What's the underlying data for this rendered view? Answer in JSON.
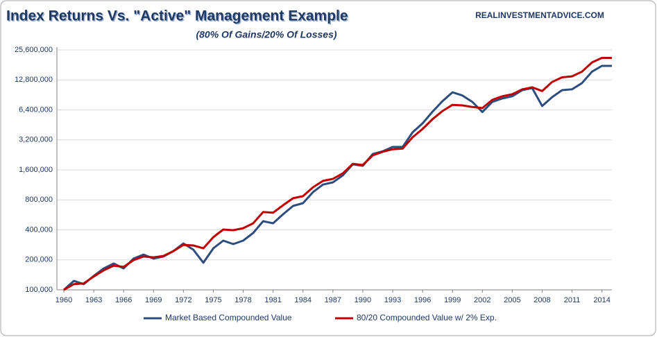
{
  "chart_data": {
    "type": "line",
    "title": "Index Returns Vs. \"Active\" Management Example",
    "subtitle": "(80% Of Gains/20% Of Losses)",
    "source": "REALINVESTMENTADVICE.COM",
    "x": [
      1960,
      1961,
      1962,
      1963,
      1964,
      1965,
      1966,
      1967,
      1968,
      1969,
      1970,
      1971,
      1972,
      1973,
      1974,
      1975,
      1976,
      1977,
      1978,
      1979,
      1980,
      1981,
      1982,
      1983,
      1984,
      1985,
      1986,
      1987,
      1988,
      1989,
      1990,
      1991,
      1992,
      1993,
      1994,
      1995,
      1996,
      1997,
      1998,
      1999,
      2000,
      2001,
      2002,
      2003,
      2004,
      2005,
      2006,
      2007,
      2008,
      2009,
      2010,
      2011,
      2012,
      2013,
      2014,
      2015
    ],
    "series": [
      {
        "name": "Market Based Compounded Value",
        "color": "#2e4d7f",
        "values": [
          100000,
          123000,
          114000,
          138000,
          164000,
          184000,
          164000,
          206000,
          226000,
          206000,
          216000,
          245000,
          292000,
          253000,
          187000,
          261000,
          312000,
          288000,
          312000,
          372000,
          489000,
          466000,
          574000,
          695000,
          741000,
          957000,
          1140000,
          1200000,
          1410000,
          1820000,
          1760000,
          2310000,
          2460000,
          2720000,
          2720000,
          3810000,
          4690000,
          6150000,
          7830000,
          9620000,
          8930000,
          7700000,
          6090000,
          7700000,
          8340000,
          8770000,
          10100000,
          10600000,
          7000000,
          8600000,
          10100000,
          10300000,
          11900000,
          15500000,
          17700000,
          17700000
        ]
      },
      {
        "name": "80/20 Compounded Value w/ 2% Exp.",
        "color": "#c00000",
        "values": [
          100000,
          114000,
          116000,
          136000,
          157000,
          175000,
          170000,
          199000,
          216000,
          212000,
          219000,
          245000,
          283000,
          279000,
          261000,
          338000,
          403000,
          397000,
          416000,
          466000,
          604000,
          594000,
          706000,
          831000,
          872000,
          1070000,
          1240000,
          1300000,
          1480000,
          1840000,
          1790000,
          2240000,
          2430000,
          2580000,
          2620000,
          3400000,
          4120000,
          5170000,
          6240000,
          7200000,
          7100000,
          6850000,
          6670000,
          8070000,
          8770000,
          9210000,
          10300000,
          10800000,
          9900000,
          12200000,
          13600000,
          13900000,
          15500000,
          19200000,
          21300000,
          21300000
        ]
      }
    ],
    "xlim": [
      1960,
      2015
    ],
    "xticks": [
      1960,
      1963,
      1966,
      1969,
      1972,
      1975,
      1978,
      1981,
      1984,
      1987,
      1990,
      1993,
      1996,
      1999,
      2002,
      2005,
      2008,
      2011,
      2014
    ],
    "ylim": [
      100000,
      25600000
    ],
    "yticks": [
      {
        "value": 100000,
        "label": "100,000"
      },
      {
        "value": 200000,
        "label": "200,000"
      },
      {
        "value": 400000,
        "label": "400,000"
      },
      {
        "value": 800000,
        "label": "800,000"
      },
      {
        "value": 1600000,
        "label": "1,600,000"
      },
      {
        "value": 3200000,
        "label": "3,200,000"
      },
      {
        "value": 6400000,
        "label": "6,400,000"
      },
      {
        "value": 12800000,
        "label": "12,800,000"
      },
      {
        "value": 25600000,
        "label": "25,600,000"
      }
    ],
    "y_scale": "log",
    "grid": true,
    "legend": "bottom"
  }
}
